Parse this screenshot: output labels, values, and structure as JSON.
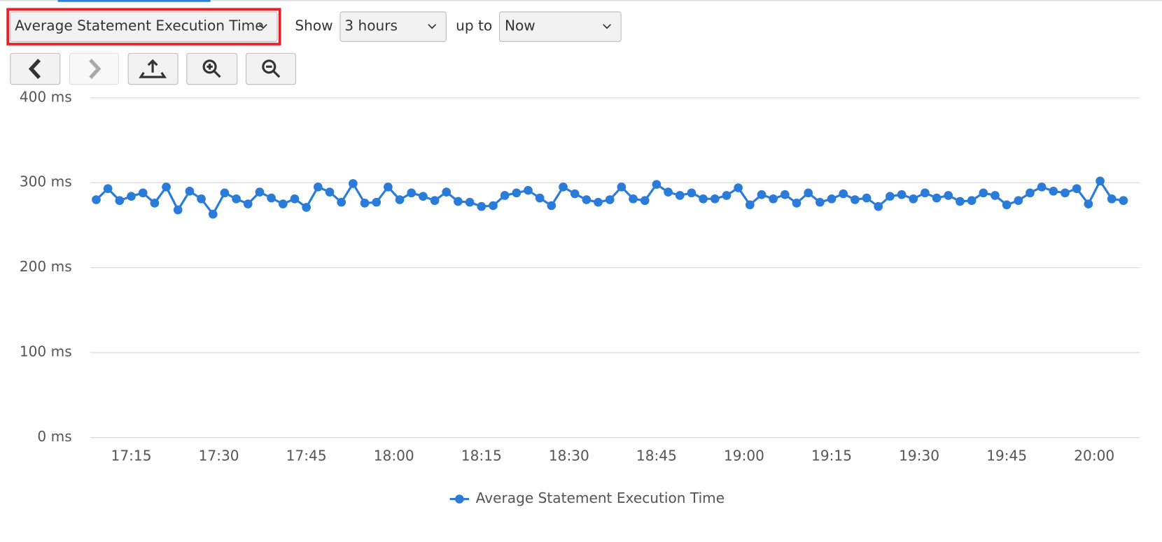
{
  "controls": {
    "metric_select": "Average Statement Execution Time",
    "show_label": "Show",
    "range_select": "3 hours",
    "upto_label": "up to",
    "end_select": "Now"
  },
  "chart_data": {
    "type": "line",
    "x": [
      "17:09",
      "17:11",
      "17:13",
      "17:15",
      "17:17",
      "17:19",
      "17:21",
      "17:23",
      "17:25",
      "17:27",
      "17:29",
      "17:31",
      "17:33",
      "17:35",
      "17:37",
      "17:39",
      "17:41",
      "17:43",
      "17:45",
      "17:47",
      "17:49",
      "17:51",
      "17:53",
      "17:55",
      "17:57",
      "17:59",
      "18:01",
      "18:03",
      "18:05",
      "18:07",
      "18:09",
      "18:11",
      "18:13",
      "18:15",
      "18:17",
      "18:19",
      "18:21",
      "18:23",
      "18:25",
      "18:27",
      "18:29",
      "18:31",
      "18:33",
      "18:35",
      "18:37",
      "18:39",
      "18:41",
      "18:43",
      "18:45",
      "18:47",
      "18:49",
      "18:51",
      "18:53",
      "18:55",
      "18:57",
      "18:59",
      "19:01",
      "19:03",
      "19:05",
      "19:07",
      "19:09",
      "19:11",
      "19:13",
      "19:15",
      "19:17",
      "19:19",
      "19:21",
      "19:23",
      "19:25",
      "19:27",
      "19:29",
      "19:31",
      "19:33",
      "19:35",
      "19:37",
      "19:39",
      "19:41",
      "19:43",
      "19:45",
      "19:47",
      "19:49",
      "19:51",
      "19:53",
      "19:55",
      "19:57",
      "19:59",
      "20:01",
      "20:03",
      "20:05"
    ],
    "series": [
      {
        "name": "Average Statement Execution Time",
        "color": "#2b7cd9",
        "values": [
          280,
          293,
          279,
          284,
          288,
          276,
          295,
          268,
          290,
          281,
          263,
          288,
          281,
          275,
          289,
          282,
          275,
          281,
          271,
          295,
          289,
          277,
          299,
          276,
          277,
          295,
          280,
          288,
          284,
          279,
          289,
          278,
          277,
          272,
          273,
          285,
          288,
          291,
          282,
          273,
          295,
          287,
          280,
          277,
          280,
          295,
          281,
          279,
          298,
          289,
          285,
          288,
          281,
          281,
          285,
          294,
          274,
          286,
          281,
          286,
          276,
          288,
          277,
          281,
          287,
          280,
          282,
          272,
          284,
          286,
          281,
          288,
          282,
          285,
          278,
          279,
          288,
          285,
          274,
          279,
          288,
          295,
          290,
          288,
          293,
          275,
          302,
          281,
          279
        ]
      }
    ],
    "xlim": [
      "17:08",
      "20:08"
    ],
    "xticks": [
      "17:15",
      "17:30",
      "17:45",
      "18:00",
      "18:15",
      "18:30",
      "18:45",
      "19:00",
      "19:15",
      "19:30",
      "19:45",
      "20:00"
    ],
    "ylim": [
      0,
      400
    ],
    "yticks": [
      {
        "value": 0,
        "label": "0 ms"
      },
      {
        "value": 100,
        "label": "100 ms"
      },
      {
        "value": 200,
        "label": "200 ms"
      },
      {
        "value": 300,
        "label": "300 ms"
      },
      {
        "value": 400,
        "label": "400 ms"
      }
    ],
    "grid": true,
    "legend": "bottom"
  }
}
